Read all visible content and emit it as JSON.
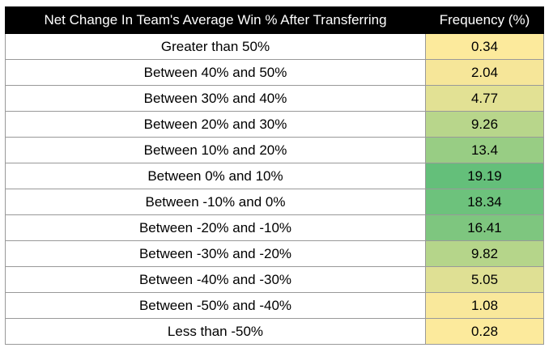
{
  "chart_data": {
    "type": "table",
    "columns": [
      "Net Change In Team's Average Win % After Transferring",
      "Frequency (%)"
    ],
    "rows": [
      {
        "label": "Greater than 50%",
        "value": "0.34",
        "color": "#fcea9c"
      },
      {
        "label": "Between 40% and 50%",
        "value": "2.04",
        "color": "#f6e699"
      },
      {
        "label": "Between 30% and 40%",
        "value": "4.77",
        "color": "#e2e194"
      },
      {
        "label": "Between 20% and 30%",
        "value": "9.26",
        "color": "#b8d68b"
      },
      {
        "label": "Between 10% and 20%",
        "value": "13.4",
        "color": "#98cd84"
      },
      {
        "label": "Between 0% and 10%",
        "value": "19.19",
        "color": "#64bf7a"
      },
      {
        "label": "Between -10% and 0%",
        "value": "18.34",
        "color": "#6dc27c"
      },
      {
        "label": "Between -20% and -10%",
        "value": "16.41",
        "color": "#7ec67f"
      },
      {
        "label": "Between -30% and -20%",
        "value": "9.82",
        "color": "#b5d58a"
      },
      {
        "label": "Between -40% and -30%",
        "value": "5.05",
        "color": "#dfe094"
      },
      {
        "label": "Between -50% and -40%",
        "value": "1.08",
        "color": "#f9e89b"
      },
      {
        "label": "Less than -50%",
        "value": "0.28",
        "color": "#fcea9c"
      }
    ]
  }
}
